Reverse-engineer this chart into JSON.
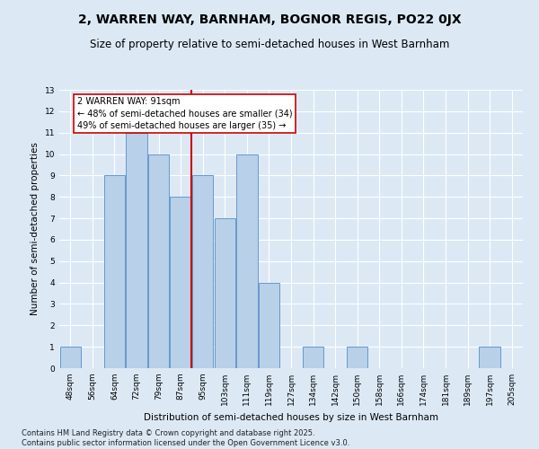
{
  "title": "2, WARREN WAY, BARNHAM, BOGNOR REGIS, PO22 0JX",
  "subtitle": "Size of property relative to semi-detached houses in West Barnham",
  "xlabel": "Distribution of semi-detached houses by size in West Barnham",
  "ylabel": "Number of semi-detached properties",
  "categories": [
    "48sqm",
    "56sqm",
    "64sqm",
    "72sqm",
    "79sqm",
    "87sqm",
    "95sqm",
    "103sqm",
    "111sqm",
    "119sqm",
    "127sqm",
    "134sqm",
    "142sqm",
    "150sqm",
    "158sqm",
    "166sqm",
    "174sqm",
    "181sqm",
    "189sqm",
    "197sqm",
    "205sqm"
  ],
  "values": [
    1,
    0,
    9,
    11,
    10,
    8,
    9,
    7,
    10,
    4,
    0,
    1,
    0,
    1,
    0,
    0,
    0,
    0,
    0,
    1,
    0
  ],
  "bar_color": "#b8d0e8",
  "bar_edge_color": "#6699cc",
  "highlight_line_label": "2 WARREN WAY: 91sqm",
  "annotation_line1": "← 48% of semi-detached houses are smaller (34)",
  "annotation_line2": "49% of semi-detached houses are larger (35) →",
  "annotation_box_color": "#ffffff",
  "annotation_box_edge": "#cc0000",
  "vline_color": "#cc0000",
  "vline_x_index": 5.5,
  "ylim": [
    0,
    13
  ],
  "yticks": [
    0,
    1,
    2,
    3,
    4,
    5,
    6,
    7,
    8,
    9,
    10,
    11,
    12,
    13
  ],
  "background_color": "#dce9f5",
  "grid_color": "#ffffff",
  "footer1": "Contains HM Land Registry data © Crown copyright and database right 2025.",
  "footer2": "Contains public sector information licensed under the Open Government Licence v3.0.",
  "title_fontsize": 10,
  "subtitle_fontsize": 8.5,
  "axis_label_fontsize": 7.5,
  "tick_fontsize": 6.5,
  "footer_fontsize": 6,
  "annotation_fontsize": 7
}
